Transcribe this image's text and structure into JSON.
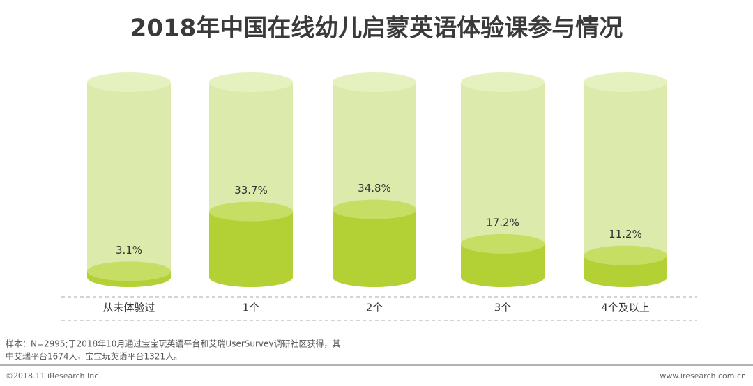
{
  "chart_data": {
    "type": "cylinder",
    "title": "2018年中国在线幼儿启蒙英语体验课参与情况",
    "categories": [
      "从未体验过",
      "1个",
      "2个",
      "3个",
      "4个及以上"
    ],
    "values": [
      3.1,
      33.7,
      34.8,
      17.2,
      11.2
    ],
    "value_labels": [
      "3.1%",
      "33.7%",
      "34.8%",
      "17.2%",
      "11.2%"
    ],
    "color": "#b3d135",
    "ylim": [
      0,
      100
    ]
  },
  "footer": {
    "note": [
      "样本：N=2995;于2018年10月通过宝宝玩英语平台和艾瑞UserSurvey调研社区获得，其",
      "中艾瑞平台1674人，宝宝玩英语平台1321人。"
    ],
    "copyright": "©2018.11 iResearch Inc.",
    "website": "www.iresearch.com.cn"
  }
}
